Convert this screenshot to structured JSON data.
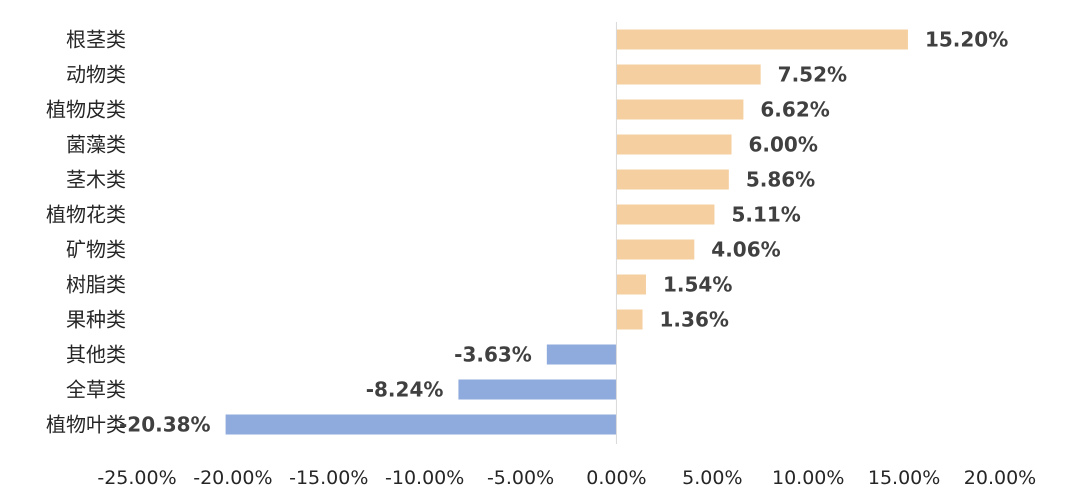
{
  "chart_data": {
    "type": "bar",
    "orientation": "horizontal",
    "categories": [
      "根茎类",
      "动物类",
      "植物皮类",
      "菌藻类",
      "茎木类",
      "植物花类",
      "矿物类",
      "树脂类",
      "果种类",
      "其他类",
      "全草类",
      "植物叶类"
    ],
    "values": [
      15.2,
      7.52,
      6.62,
      6.0,
      5.86,
      5.11,
      4.06,
      1.54,
      1.36,
      -3.63,
      -8.24,
      -20.38
    ],
    "data_labels": [
      "15.20%",
      "7.52%",
      "6.62%",
      "6.00%",
      "5.86%",
      "5.11%",
      "4.06%",
      "1.54%",
      "1.36%",
      "-3.63%",
      "-8.24%",
      "-20.38%"
    ],
    "xlim": [
      -25,
      20
    ],
    "x_ticks": [
      -25,
      -20,
      -15,
      -10,
      -5,
      0,
      5,
      10,
      15,
      20
    ],
    "x_tick_labels": [
      "-25.00%",
      "-20.00%",
      "-15.00%",
      "-10.00%",
      "-5.00%",
      "0.00%",
      "5.00%",
      "10.00%",
      "15.00%",
      "20.00%"
    ],
    "title": "",
    "xlabel": "",
    "ylabel": "",
    "grid": false,
    "legend": "none",
    "colors": {
      "positive": "#F5CFA0",
      "negative": "#8FAADC",
      "axis": "#D9D9D9"
    }
  }
}
